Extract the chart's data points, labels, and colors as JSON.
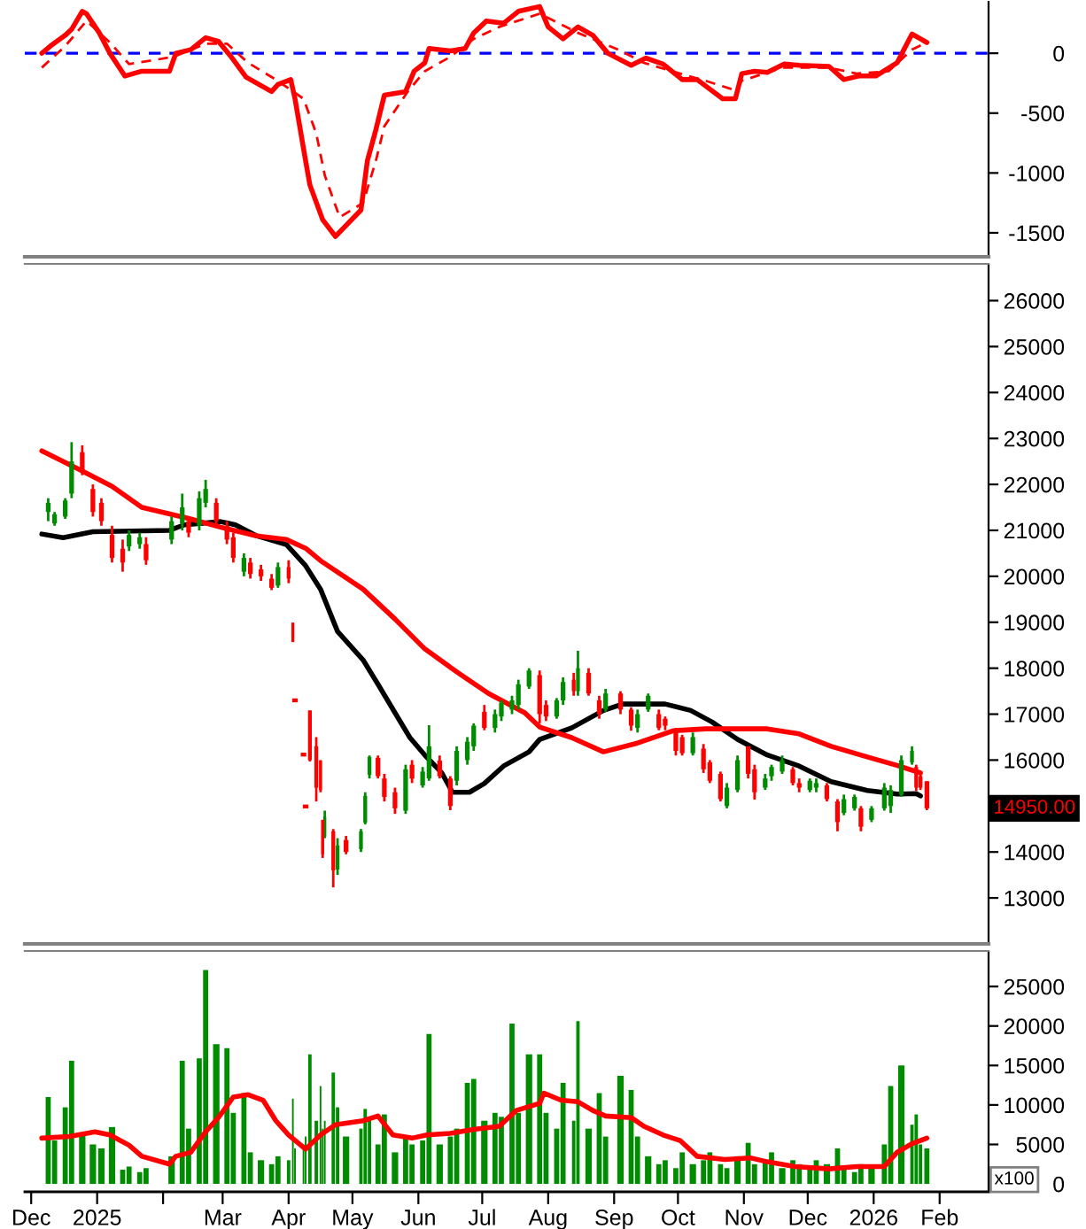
{
  "chart_data": [
    {
      "type": "line",
      "xlim": [
        "2024-11-28",
        "2026-02-24"
      ],
      "ylim": [
        -1700,
        430
      ],
      "yticks": [
        0,
        -500,
        -1000,
        -1500
      ],
      "tick_labels": "y",
      "ref_lines": [
        {
          "axis": "y",
          "value": 0,
          "color": "#0000ff",
          "line_style": "dashed"
        }
      ],
      "series": [
        {
          "color": "#ff0000",
          "line_style": "solid",
          "x": [
            "2024-12-06",
            "2024-12-10",
            "2024-12-17",
            "2024-12-20",
            "2024-12-25",
            "2024-12-27",
            "2025-01-02",
            "2025-01-07",
            "2025-01-14",
            "2025-01-22",
            "2025-02-04",
            "2025-02-07",
            "2025-02-14",
            "2025-02-21",
            "2025-02-27",
            "2025-03-05",
            "2025-03-12",
            "2025-03-24",
            "2025-03-27",
            "2025-04-02",
            "2025-04-04",
            "2025-04-09",
            "2025-04-11",
            "2025-04-17",
            "2025-04-23",
            "2025-05-05",
            "2025-05-08",
            "2025-05-12",
            "2025-05-16",
            "2025-05-26",
            "2025-05-30",
            "2025-06-04",
            "2025-06-06",
            "2025-06-16",
            "2025-06-23",
            "2025-06-27",
            "2025-07-03",
            "2025-07-11",
            "2025-07-18",
            "2025-07-28",
            "2025-08-01",
            "2025-08-08",
            "2025-08-15",
            "2025-08-22",
            "2025-08-29",
            "2025-09-09",
            "2025-09-16",
            "2025-09-24",
            "2025-10-03",
            "2025-10-10",
            "2025-10-22",
            "2025-10-28",
            "2025-10-31",
            "2025-11-06",
            "2025-11-12",
            "2025-11-20",
            "2025-11-27",
            "2025-12-11",
            "2025-12-18",
            "2025-12-25",
            "2026-01-02",
            "2026-01-12",
            "2026-01-19",
            "2026-01-23",
            "2026-01-26"
          ],
          "values": [
            0,
            60,
            150,
            200,
            350,
            330,
            170,
            0,
            -190,
            -150,
            -150,
            0,
            30,
            130,
            100,
            -30,
            -200,
            -320,
            -260,
            -220,
            -380,
            -900,
            -1100,
            -1390,
            -1530,
            -1310,
            -900,
            -640,
            -350,
            -320,
            -150,
            -80,
            40,
            20,
            40,
            170,
            270,
            250,
            350,
            390,
            220,
            120,
            220,
            150,
            0,
            -100,
            -40,
            -90,
            -220,
            -220,
            -380,
            -380,
            -170,
            -150,
            -160,
            -90,
            -100,
            -110,
            -220,
            -190,
            -190,
            -80,
            160,
            120,
            90
          ]
        },
        {
          "color": "#ff0000",
          "line_style": "dashed",
          "x": [
            "2024-12-06",
            "2024-12-17",
            "2024-12-27",
            "2025-01-07",
            "2025-01-16",
            "2025-02-06",
            "2025-02-21",
            "2025-03-03",
            "2025-03-13",
            "2025-03-26",
            "2025-04-08",
            "2025-04-14",
            "2025-04-18",
            "2025-04-25",
            "2025-05-06",
            "2025-05-12",
            "2025-05-16",
            "2025-05-27",
            "2025-06-04",
            "2025-06-16",
            "2025-06-27",
            "2025-07-09",
            "2025-07-28",
            "2025-08-05",
            "2025-08-15",
            "2025-09-03",
            "2025-09-15",
            "2025-10-02",
            "2025-10-14",
            "2025-10-28",
            "2025-10-31",
            "2025-11-19",
            "2025-12-11",
            "2025-12-24",
            "2026-01-08",
            "2026-01-19",
            "2026-01-26"
          ],
          "values": [
            -120,
            60,
            270,
            90,
            -90,
            -30,
            80,
            80,
            -80,
            -220,
            -380,
            -670,
            -1020,
            -1370,
            -1250,
            -900,
            -610,
            -320,
            -150,
            -30,
            120,
            220,
            330,
            260,
            170,
            30,
            -80,
            -170,
            -230,
            -310,
            -230,
            -120,
            -120,
            -170,
            -150,
            30,
            90
          ]
        }
      ]
    },
    {
      "type": "candlestick",
      "xlim": [
        "2024-11-28",
        "2026-02-24"
      ],
      "ylim": [
        12000,
        26800
      ],
      "yticks": [
        13000,
        14000,
        16000,
        17000,
        18000,
        19000,
        20000,
        21000,
        22000,
        23000,
        24000,
        25000,
        26000
      ],
      "tick_labels": "y",
      "annotations": [
        "14950.00"
      ],
      "series": [
        {
          "type": "candlestick",
          "color": "#008c00",
          "x": [
            "2024-12-09",
            "2024-12-12",
            "2024-12-17",
            "2024-12-20",
            "2025-01-16",
            "2025-01-21",
            "2025-02-05",
            "2025-02-10",
            "2025-02-18",
            "2025-02-21",
            "2025-03-11",
            "2025-03-27",
            "2025-04-18",
            "2025-04-24",
            "2025-05-05",
            "2025-05-07",
            "2025-05-09",
            "2025-05-26",
            "2025-06-03",
            "2025-06-06",
            "2025-06-19",
            "2025-06-24",
            "2025-06-27",
            "2025-07-07",
            "2025-07-10",
            "2025-07-15",
            "2025-07-18",
            "2025-07-23",
            "2025-08-05",
            "2025-08-08",
            "2025-08-15",
            "2025-08-28",
            "2025-09-12",
            "2025-09-17",
            "2025-10-08",
            "2025-10-24",
            "2025-10-29",
            "2025-11-11",
            "2025-11-14",
            "2025-11-19",
            "2025-12-02",
            "2025-12-05",
            "2025-12-18",
            "2025-12-23",
            "2025-12-31",
            "2026-01-06",
            "2026-01-09",
            "2026-01-14",
            "2026-01-19"
          ],
          "ohlc": [
            [
              21400,
              21700,
              21200,
              21600
            ],
            [
              21150,
              21400,
              21100,
              21350
            ],
            [
              21300,
              21700,
              21250,
              21650
            ],
            [
              21800,
              22920,
              21700,
              22500
            ],
            [
              20650,
              21000,
              20550,
              20900
            ],
            [
              20700,
              20950,
              20600,
              20850
            ],
            [
              20800,
              21300,
              20700,
              21200
            ],
            [
              21150,
              21800,
              21000,
              21500
            ],
            [
              21100,
              21850,
              21000,
              21700
            ],
            [
              21600,
              22100,
              21500,
              21900
            ],
            [
              20100,
              20500,
              20000,
              20400
            ],
            [
              19800,
              20300,
              19750,
              20200
            ],
            [
              14330,
              14900,
              14300,
              14770
            ],
            [
              13620,
              14300,
              13500,
              14140
            ],
            [
              14060,
              14500,
              14000,
              14450
            ],
            [
              14640,
              15300,
              14600,
              15220
            ],
            [
              15680,
              16100,
              15600,
              16070
            ],
            [
              14900,
              15900,
              14830,
              15800
            ],
            [
              15450,
              15850,
              15400,
              15750
            ],
            [
              15600,
              16760,
              15550,
              16300
            ],
            [
              15550,
              16300,
              15450,
              16200
            ],
            [
              16000,
              16500,
              15900,
              16400
            ],
            [
              16300,
              16800,
              16200,
              16750
            ],
            [
              16700,
              17100,
              16600,
              17000
            ],
            [
              16950,
              17300,
              16850,
              17250
            ],
            [
              17100,
              17400,
              17000,
              17300
            ],
            [
              17200,
              17750,
              17100,
              17650
            ],
            [
              17600,
              18000,
              17550,
              17950
            ],
            [
              16950,
              17350,
              16900,
              17300
            ],
            [
              17300,
              17800,
              17200,
              17700
            ],
            [
              17500,
              18380,
              17400,
              18000
            ],
            [
              17100,
              17550,
              17050,
              17450
            ],
            [
              16700,
              17100,
              16600,
              17000
            ],
            [
              17100,
              17450,
              17050,
              17400
            ],
            [
              16150,
              16600,
              16100,
              16500
            ],
            [
              15000,
              15500,
              14950,
              15400
            ],
            [
              15350,
              16100,
              15300,
              16000
            ],
            [
              15400,
              15700,
              15350,
              15600
            ],
            [
              15650,
              15900,
              15550,
              15850
            ],
            [
              15750,
              16100,
              15700,
              16000
            ],
            [
              15350,
              15600,
              15300,
              15550
            ],
            [
              15400,
              15600,
              15300,
              15500
            ],
            [
              14850,
              15250,
              14800,
              15150
            ],
            [
              14950,
              15250,
              14900,
              15200
            ],
            [
              14700,
              15000,
              14650,
              14950
            ],
            [
              14950,
              15500,
              14900,
              15400
            ],
            [
              15000,
              15450,
              14850,
              15350
            ],
            [
              15250,
              16100,
              15200,
              16000
            ],
            [
              15950,
              16300,
              15900,
              16200
            ]
          ]
        },
        {
          "type": "candlestick",
          "color": "#ff0000",
          "x": [
            "2024-12-25",
            "2024-12-30",
            "2025-01-03",
            "2025-01-08",
            "2025-01-13",
            "2025-01-24",
            "2025-02-13",
            "2025-02-26",
            "2025-03-03",
            "2025-03-06",
            "2025-03-14",
            "2025-03-19",
            "2025-03-24",
            "2025-04-01",
            "2025-04-03",
            "2025-04-04",
            "2025-04-08",
            "2025-04-09",
            "2025-04-11",
            "2025-04-14",
            "2025-04-16",
            "2025-04-17",
            "2025-04-22",
            "2025-04-28",
            "2025-05-13",
            "2025-05-16",
            "2025-05-21",
            "2025-05-29",
            "2025-06-11",
            "2025-06-16",
            "2025-07-02",
            "2025-07-28",
            "2025-07-31",
            "2025-08-13",
            "2025-08-20",
            "2025-08-25",
            "2025-09-04",
            "2025-09-09",
            "2025-09-22",
            "2025-09-25",
            "2025-09-30",
            "2025-10-03",
            "2025-10-13",
            "2025-10-16",
            "2025-10-21",
            "2025-11-03",
            "2025-11-06",
            "2025-11-24",
            "2025-11-27",
            "2025-12-10",
            "2025-12-15",
            "2025-12-26",
            "2026-01-21",
            "2026-01-23",
            "2026-01-26"
          ],
          "ohlc": [
            [
              22700,
              22850,
              22200,
              22300
            ],
            [
              21900,
              22000,
              21300,
              21400
            ],
            [
              21600,
              21700,
              21100,
              21200
            ],
            [
              20900,
              21100,
              20300,
              20400
            ],
            [
              20600,
              20800,
              20100,
              20300
            ],
            [
              20700,
              20850,
              20250,
              20350
            ],
            [
              21200,
              21300,
              20850,
              20950
            ],
            [
              21600,
              21700,
              21100,
              21200
            ],
            [
              21100,
              21200,
              20700,
              20800
            ],
            [
              20850,
              20950,
              20300,
              20400
            ],
            [
              20300,
              20400,
              19950,
              20050
            ],
            [
              20150,
              20250,
              19900,
              20000
            ],
            [
              19950,
              20050,
              19700,
              19750
            ],
            [
              20200,
              20350,
              19850,
              19950
            ],
            [
              18990,
              18990,
              18570,
              18570
            ],
            [
              17300,
              17300,
              17300,
              17300
            ],
            [
              16120,
              16120,
              16120,
              16120
            ],
            [
              14990,
              14990,
              14990,
              14990
            ],
            [
              17080,
              17080,
              15970,
              16000
            ],
            [
              16300,
              16500,
              15100,
              15400
            ],
            [
              15990,
              16000,
              15300,
              15350
            ],
            [
              14700,
              14700,
              13870,
              13950
            ],
            [
              14450,
              14500,
              13230,
              13600
            ],
            [
              14260,
              14350,
              13950,
              14000
            ],
            [
              16050,
              16100,
              15600,
              15650
            ],
            [
              15600,
              15700,
              15100,
              15200
            ],
            [
              15300,
              15400,
              14830,
              14950
            ],
            [
              15900,
              16000,
              15500,
              15600
            ],
            [
              15990,
              16100,
              15600,
              15650
            ],
            [
              15600,
              15650,
              14910,
              15000
            ],
            [
              17050,
              17200,
              16650,
              16700
            ],
            [
              17850,
              17950,
              16800,
              17000
            ],
            [
              17200,
              17300,
              16850,
              16950
            ],
            [
              17750,
              17900,
              17400,
              17500
            ],
            [
              17900,
              18000,
              17400,
              17450
            ],
            [
              17300,
              17400,
              16900,
              17000
            ],
            [
              17450,
              17500,
              17000,
              17100
            ],
            [
              17100,
              17150,
              16640,
              16750
            ],
            [
              17000,
              17100,
              16650,
              16700
            ],
            [
              16900,
              16950,
              16650,
              16750
            ],
            [
              16650,
              16700,
              16100,
              16200
            ],
            [
              16500,
              16550,
              16100,
              16150
            ],
            [
              16250,
              16350,
              15720,
              15800
            ],
            [
              15950,
              16000,
              15500,
              15550
            ],
            [
              15700,
              15750,
              15100,
              15150
            ],
            [
              16300,
              16300,
              15600,
              15700
            ],
            [
              15800,
              15900,
              15140,
              15300
            ],
            [
              15800,
              15850,
              15450,
              15500
            ],
            [
              15500,
              15600,
              15300,
              15400
            ],
            [
              15450,
              15500,
              15100,
              15150
            ],
            [
              15100,
              15150,
              14450,
              14650
            ],
            [
              14950,
              15000,
              14450,
              14550
            ],
            [
              15850,
              15900,
              15330,
              15400
            ],
            [
              15650,
              15700,
              15350,
              15400
            ],
            [
              15540,
              15540,
              14910,
              14950
            ]
          ]
        },
        {
          "type": "line",
          "color": "#000000",
          "line_style": "solid",
          "x": [
            "2024-12-06",
            "2024-12-16",
            "2024-12-30",
            "2025-02-04",
            "2025-02-11",
            "2025-02-28",
            "2025-03-07",
            "2025-03-17",
            "2025-03-31",
            "2025-04-09",
            "2025-04-16",
            "2025-04-24",
            "2025-05-06",
            "2025-05-13",
            "2025-05-21",
            "2025-05-28",
            "2025-06-04",
            "2025-06-12",
            "2025-06-17",
            "2025-06-25",
            "2025-07-02",
            "2025-07-11",
            "2025-07-23",
            "2025-07-28",
            "2025-08-12",
            "2025-08-27",
            "2025-09-05",
            "2025-09-25",
            "2025-10-07",
            "2025-10-17",
            "2025-10-29",
            "2025-11-12",
            "2025-11-27",
            "2025-12-12",
            "2025-12-29",
            "2026-01-12",
            "2026-01-21",
            "2026-01-23"
          ],
          "values": [
            20920,
            20840,
            20970,
            21000,
            21120,
            21190,
            21120,
            20880,
            20690,
            20230,
            19720,
            18800,
            18180,
            17650,
            17030,
            16490,
            16110,
            15720,
            15300,
            15300,
            15490,
            15870,
            16180,
            16450,
            16700,
            17080,
            17220,
            17220,
            17080,
            16830,
            16450,
            16110,
            15870,
            15530,
            15340,
            15260,
            15270,
            15220
          ]
        },
        {
          "type": "line",
          "color": "#ff0000",
          "line_style": "solid",
          "x": [
            "2024-12-06",
            "2024-12-23",
            "2025-01-08",
            "2025-01-22",
            "2025-02-13",
            "2025-02-28",
            "2025-03-17",
            "2025-03-31",
            "2025-04-09",
            "2025-04-16",
            "2025-05-06",
            "2025-05-21",
            "2025-06-04",
            "2025-06-19",
            "2025-07-04",
            "2025-07-21",
            "2025-07-28",
            "2025-08-12",
            "2025-08-27",
            "2025-09-12",
            "2025-09-29",
            "2025-10-14",
            "2025-11-12",
            "2025-11-27",
            "2025-12-12",
            "2025-12-29",
            "2026-01-13",
            "2026-01-23"
          ],
          "values": [
            22730,
            22340,
            21960,
            21500,
            21260,
            21070,
            20880,
            20800,
            20610,
            20340,
            19720,
            19070,
            18420,
            17920,
            17450,
            17030,
            16720,
            16490,
            16180,
            16370,
            16640,
            16680,
            16680,
            16570,
            16300,
            16070,
            15870,
            15720
          ]
        }
      ]
    },
    {
      "type": "bar",
      "xlim": [
        "2024-11-28",
        "2026-02-24"
      ],
      "ylim": [
        -1000,
        29500
      ],
      "yticks": [
        0,
        5000,
        10000,
        15000,
        20000,
        25000
      ],
      "xticks": [
        {
          "value": "2024-12-01",
          "label": "Dec"
        },
        {
          "value": "2025-01-01",
          "label": "2025"
        },
        {
          "value": "2025-02-01",
          "label": null
        },
        {
          "value": "2025-03-01",
          "label": "Mar"
        },
        {
          "value": "2025-04-01",
          "label": "Apr"
        },
        {
          "value": "2025-05-01",
          "label": "May"
        },
        {
          "value": "2025-06-01",
          "label": "Jun"
        },
        {
          "value": "2025-07-01",
          "label": "Jul"
        },
        {
          "value": "2025-08-01",
          "label": "Aug"
        },
        {
          "value": "2025-09-01",
          "label": "Sep"
        },
        {
          "value": "2025-10-01",
          "label": "Oct"
        },
        {
          "value": "2025-11-01",
          "label": "Nov"
        },
        {
          "value": "2025-12-01",
          "label": "Dec"
        },
        {
          "value": "2026-01-01",
          "label": "2026"
        },
        {
          "value": "2026-02-01",
          "label": "Feb"
        }
      ],
      "annotations": [
        "x100"
      ],
      "series": [
        {
          "color": "#008c00",
          "x": [
            "2024-12-09",
            "2024-12-12",
            "2024-12-17",
            "2024-12-20",
            "2024-12-25",
            "2024-12-30",
            "2025-01-03",
            "2025-01-08",
            "2025-01-13",
            "2025-01-16",
            "2025-01-21",
            "2025-01-24",
            "2025-02-05",
            "2025-02-10",
            "2025-02-13",
            "2025-02-18",
            "2025-02-21",
            "2025-02-26",
            "2025-03-03",
            "2025-03-06",
            "2025-03-11",
            "2025-03-14",
            "2025-03-19",
            "2025-03-24",
            "2025-03-27",
            "2025-04-01",
            "2025-04-03",
            "2025-04-04",
            "2025-04-08",
            "2025-04-09",
            "2025-04-11",
            "2025-04-14",
            "2025-04-16",
            "2025-04-17",
            "2025-04-18",
            "2025-04-22",
            "2025-04-24",
            "2025-04-28",
            "2025-05-05",
            "2025-05-07",
            "2025-05-09",
            "2025-05-13",
            "2025-05-16",
            "2025-05-21",
            "2025-05-26",
            "2025-05-29",
            "2025-06-03",
            "2025-06-06",
            "2025-06-11",
            "2025-06-16",
            "2025-06-19",
            "2025-06-24",
            "2025-06-27",
            "2025-07-02",
            "2025-07-07",
            "2025-07-10",
            "2025-07-15",
            "2025-07-18",
            "2025-07-23",
            "2025-07-28",
            "2025-07-31",
            "2025-08-05",
            "2025-08-08",
            "2025-08-13",
            "2025-08-15",
            "2025-08-20",
            "2025-08-25",
            "2025-08-28",
            "2025-09-04",
            "2025-09-09",
            "2025-09-12",
            "2025-09-17",
            "2025-09-22",
            "2025-09-25",
            "2025-09-30",
            "2025-10-03",
            "2025-10-08",
            "2025-10-13",
            "2025-10-16",
            "2025-10-21",
            "2025-10-24",
            "2025-10-29",
            "2025-11-03",
            "2025-11-06",
            "2025-11-11",
            "2025-11-14",
            "2025-11-19",
            "2025-11-24",
            "2025-11-27",
            "2025-12-02",
            "2025-12-05",
            "2025-12-10",
            "2025-12-15",
            "2025-12-18",
            "2025-12-23",
            "2025-12-26",
            "2025-12-31",
            "2026-01-06",
            "2026-01-09",
            "2026-01-14",
            "2026-01-19",
            "2026-01-21",
            "2026-01-23",
            "2026-01-26"
          ],
          "values": [
            11000,
            5500,
            9700,
            15600,
            6500,
            5000,
            4500,
            7200,
            1800,
            2200,
            1500,
            2000,
            3500,
            15600,
            7000,
            15900,
            27100,
            17700,
            17200,
            9000,
            11500,
            4000,
            3000,
            2500,
            3500,
            3000,
            10800,
            4500,
            5000,
            6000,
            16400,
            8000,
            12400,
            7000,
            8000,
            14100,
            9700,
            6000,
            7000,
            9500,
            8000,
            5000,
            8800,
            4000,
            6000,
            5000,
            5500,
            19000,
            5000,
            6000,
            7000,
            12800,
            13300,
            8000,
            9000,
            8500,
            20300,
            9000,
            16400,
            16400,
            9000,
            7000,
            12800,
            8000,
            20600,
            7000,
            11500,
            6000,
            13700,
            11900,
            6000,
            3500,
            2500,
            3000,
            2000,
            4000,
            2500,
            3000,
            4000,
            2500,
            2000,
            3500,
            5200,
            2500,
            3000,
            4000,
            2000,
            3000,
            2500,
            2000,
            3000,
            2500,
            4500,
            2000,
            1500,
            2500,
            2000,
            5000,
            12400,
            15000,
            7500,
            8800,
            5000,
            4500
          ]
        },
        {
          "type": "line",
          "color": "#ff0000",
          "line_style": "solid",
          "x": [
            "2024-12-06",
            "2024-12-19",
            "2024-12-31",
            "2025-01-07",
            "2025-01-16",
            "2025-01-22",
            "2025-02-04",
            "2025-02-07",
            "2025-02-14",
            "2025-02-21",
            "2025-02-27",
            "2025-03-06",
            "2025-03-13",
            "2025-03-20",
            "2025-03-26",
            "2025-04-01",
            "2025-04-09",
            "2025-04-16",
            "2025-04-23",
            "2025-05-06",
            "2025-05-13",
            "2025-05-20",
            "2025-05-29",
            "2025-06-05",
            "2025-06-16",
            "2025-06-27",
            "2025-07-09",
            "2025-07-17",
            "2025-07-28",
            "2025-07-30",
            "2025-08-07",
            "2025-08-15",
            "2025-08-22",
            "2025-08-28",
            "2025-09-09",
            "2025-09-15",
            "2025-09-24",
            "2025-10-02",
            "2025-10-10",
            "2025-10-23",
            "2025-11-04",
            "2025-11-12",
            "2025-11-25",
            "2025-12-11",
            "2025-12-24",
            "2026-01-06",
            "2026-01-12",
            "2026-01-19",
            "2026-01-26"
          ],
          "values": [
            5800,
            6000,
            6600,
            6200,
            4900,
            3500,
            2500,
            3500,
            4000,
            6600,
            8400,
            11000,
            11300,
            10600,
            8000,
            6200,
            4400,
            6200,
            7500,
            8000,
            8600,
            6200,
            5800,
            6200,
            6400,
            6900,
            7300,
            9300,
            10200,
            11500,
            10600,
            10400,
            9300,
            8600,
            8400,
            7300,
            6200,
            5500,
            3500,
            3100,
            3300,
            2800,
            2200,
            1900,
            2200,
            2200,
            4000,
            5100,
            5800
          ]
        }
      ]
    }
  ]
}
